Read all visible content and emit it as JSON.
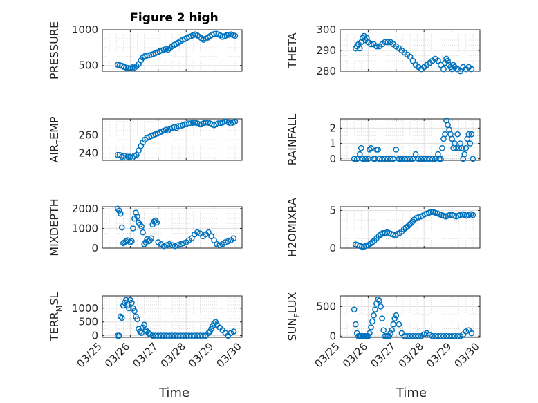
{
  "figure": {
    "title": "Figure 2 high",
    "xlabel": "Time",
    "marker_color": "#0072BD",
    "x_tick_labels": [
      "03/25",
      "03/26",
      "03/27",
      "03/28",
      "03/29",
      "03/30"
    ]
  },
  "chart_data": [
    {
      "type": "scatter",
      "title": "Figure 2 high",
      "ylabel": "PRESSURE",
      "xlabel": "",
      "xlim": [
        0,
        5
      ],
      "ylim": [
        420,
        1000
      ],
      "yticks": [
        500,
        1000
      ],
      "grid": true,
      "x": [
        0.55,
        0.62,
        0.7,
        0.78,
        0.85,
        0.92,
        1.0,
        1.08,
        1.15,
        1.22,
        1.3,
        1.38,
        1.45,
        1.52,
        1.6,
        1.68,
        1.75,
        1.82,
        1.9,
        1.98,
        2.05,
        2.12,
        2.2,
        2.28,
        2.35,
        2.42,
        2.5,
        2.58,
        2.65,
        2.72,
        2.8,
        2.88,
        2.95,
        3.02,
        3.1,
        3.18,
        3.25,
        3.32,
        3.4,
        3.48,
        3.55,
        3.62,
        3.7,
        3.78,
        3.85,
        3.92,
        4.0,
        4.08,
        4.15,
        4.22,
        4.3,
        4.38,
        4.45,
        4.52,
        4.6,
        4.68,
        4.75
      ],
      "y": [
        510,
        505,
        495,
        480,
        470,
        465,
        460,
        475,
        470,
        490,
        520,
        570,
        610,
        630,
        640,
        645,
        650,
        660,
        675,
        685,
        700,
        710,
        720,
        730,
        720,
        740,
        770,
        790,
        800,
        820,
        840,
        860,
        870,
        885,
        900,
        910,
        925,
        935,
        920,
        900,
        880,
        860,
        875,
        890,
        910,
        930,
        940,
        945,
        935,
        920,
        900,
        910,
        925,
        930,
        935,
        925,
        915
      ]
    },
    {
      "type": "scatter",
      "title": "",
      "ylabel": "THETA",
      "xlabel": "",
      "xlim": [
        0,
        5
      ],
      "ylim": [
        280,
        300
      ],
      "yticks": [
        280,
        290,
        300
      ],
      "grid": true,
      "x": [
        0.55,
        0.6,
        0.65,
        0.7,
        0.75,
        0.8,
        0.85,
        0.9,
        0.95,
        1.0,
        1.1,
        1.2,
        1.3,
        1.4,
        1.5,
        1.6,
        1.7,
        1.8,
        1.9,
        2.0,
        2.1,
        2.2,
        2.3,
        2.4,
        2.5,
        2.6,
        2.7,
        2.8,
        2.9,
        3.0,
        3.1,
        3.2,
        3.3,
        3.4,
        3.5,
        3.6,
        3.7,
        3.75,
        3.8,
        3.85,
        3.9,
        3.95,
        4.0,
        4.05,
        4.1,
        4.2,
        4.3,
        4.4,
        4.5,
        4.6,
        4.7
      ],
      "y": [
        291,
        292,
        293,
        291,
        294,
        296,
        297,
        295,
        296,
        294,
        293,
        293,
        292,
        292,
        293,
        294,
        294,
        294,
        293,
        292,
        291,
        290,
        289,
        288,
        287,
        285,
        283,
        282,
        281,
        282,
        283,
        284,
        285,
        286,
        285,
        283,
        281,
        284,
        286,
        285,
        283,
        282,
        281,
        283,
        282,
        281,
        280,
        282,
        281,
        282,
        281
      ]
    },
    {
      "type": "scatter",
      "title": "",
      "ylabel": "AIR_TEMP",
      "xlabel": "",
      "xlim": [
        0,
        5
      ],
      "ylim": [
        232,
        278
      ],
      "yticks": [
        240,
        260
      ],
      "grid": true,
      "x": [
        0.55,
        0.62,
        0.7,
        0.78,
        0.85,
        0.92,
        1.0,
        1.08,
        1.15,
        1.22,
        1.3,
        1.38,
        1.45,
        1.52,
        1.6,
        1.68,
        1.75,
        1.82,
        1.9,
        1.98,
        2.05,
        2.12,
        2.2,
        2.28,
        2.35,
        2.42,
        2.5,
        2.58,
        2.65,
        2.72,
        2.8,
        2.88,
        2.95,
        3.02,
        3.1,
        3.18,
        3.25,
        3.32,
        3.4,
        3.48,
        3.55,
        3.62,
        3.7,
        3.78,
        3.85,
        3.92,
        4.0,
        4.08,
        4.15,
        4.22,
        4.3,
        4.38,
        4.45,
        4.52,
        4.6,
        4.68,
        4.75
      ],
      "y": [
        238,
        238,
        236,
        237,
        235,
        236,
        236,
        235,
        237,
        238,
        243,
        248,
        252,
        255,
        257,
        258,
        259,
        260,
        261,
        262,
        263,
        264,
        265,
        266,
        265,
        267,
        268,
        269,
        268,
        270,
        270,
        271,
        272,
        272,
        273,
        273,
        274,
        274,
        273,
        272,
        272,
        273,
        274,
        274,
        273,
        272,
        271,
        272,
        273,
        273,
        274,
        275,
        275,
        274,
        273,
        274,
        275
      ]
    },
    {
      "type": "scatter",
      "title": "",
      "ylabel": "RAINFALL",
      "xlabel": "",
      "xlim": [
        0,
        5
      ],
      "ylim": [
        -0.1,
        2.6
      ],
      "yticks": [
        0,
        1,
        2
      ],
      "grid": true,
      "x": [
        0.5,
        0.6,
        0.7,
        0.75,
        0.8,
        0.9,
        1.0,
        1.05,
        1.1,
        1.2,
        1.25,
        1.3,
        1.35,
        1.4,
        1.5,
        1.6,
        1.7,
        1.8,
        1.9,
        2.0,
        2.1,
        2.15,
        2.2,
        2.3,
        2.4,
        2.5,
        2.6,
        2.7,
        2.8,
        2.9,
        3.0,
        3.1,
        3.2,
        3.3,
        3.4,
        3.5,
        3.55,
        3.6,
        3.65,
        3.7,
        3.75,
        3.8,
        3.85,
        3.9,
        3.95,
        4.0,
        4.05,
        4.1,
        4.15,
        4.2,
        4.25,
        4.3,
        4.35,
        4.4,
        4.45,
        4.5,
        4.55,
        4.6,
        4.65,
        4.7,
        4.75
      ],
      "y": [
        0,
        0,
        0.3,
        0.7,
        0,
        0,
        0,
        0.6,
        0.7,
        0,
        0,
        0.6,
        0.6,
        0,
        0,
        0,
        0,
        0,
        0,
        0.6,
        0,
        0,
        0,
        0,
        0,
        0,
        0,
        0.3,
        0,
        0,
        0,
        0,
        0,
        0,
        0,
        0.3,
        0,
        0,
        0.7,
        1.3,
        1.6,
        2.5,
        2.2,
        1.9,
        1.6,
        1.3,
        0.7,
        1.0,
        0.7,
        1.6,
        0.7,
        1.0,
        0.7,
        0,
        0.3,
        0.7,
        1.3,
        1.6,
        1.0,
        1.6,
        0
      ]
    },
    {
      "type": "scatter",
      "title": "",
      "ylabel": "MIXDEPTH",
      "xlabel": "",
      "xlim": [
        0,
        5
      ],
      "ylim": [
        0,
        2100
      ],
      "yticks": [
        0,
        1000,
        2000
      ],
      "grid": true,
      "x": [
        0.55,
        0.6,
        0.65,
        0.7,
        0.75,
        0.8,
        0.85,
        0.9,
        1.0,
        1.05,
        1.1,
        1.15,
        1.2,
        1.25,
        1.3,
        1.35,
        1.4,
        1.45,
        1.5,
        1.55,
        1.6,
        1.65,
        1.7,
        1.75,
        1.8,
        1.85,
        1.9,
        1.95,
        2.0,
        2.1,
        2.2,
        2.3,
        2.4,
        2.5,
        2.6,
        2.7,
        2.8,
        2.9,
        3.0,
        3.1,
        3.2,
        3.3,
        3.4,
        3.5,
        3.6,
        3.7,
        3.8,
        3.9,
        4.0,
        4.1,
        4.2,
        4.3,
        4.4,
        4.5,
        4.6,
        4.7
      ],
      "y": [
        2000,
        1900,
        1750,
        1050,
        250,
        300,
        350,
        400,
        300,
        350,
        1000,
        1500,
        1800,
        1600,
        1300,
        1200,
        1100,
        800,
        200,
        300,
        450,
        350,
        400,
        500,
        1200,
        1350,
        1400,
        1300,
        300,
        200,
        100,
        150,
        200,
        150,
        100,
        150,
        200,
        250,
        300,
        400,
        500,
        700,
        800,
        750,
        600,
        700,
        800,
        600,
        400,
        200,
        150,
        200,
        300,
        350,
        400,
        500
      ]
    },
    {
      "type": "scatter",
      "title": "",
      "ylabel": "H2OMIXRA",
      "xlabel": "",
      "xlim": [
        0,
        5
      ],
      "ylim": [
        0,
        5.5
      ],
      "yticks": [
        0,
        5
      ],
      "grid": true,
      "x": [
        0.55,
        0.62,
        0.7,
        0.78,
        0.85,
        0.92,
        1.0,
        1.08,
        1.15,
        1.22,
        1.3,
        1.38,
        1.45,
        1.52,
        1.6,
        1.68,
        1.75,
        1.82,
        1.9,
        1.98,
        2.05,
        2.12,
        2.2,
        2.28,
        2.35,
        2.42,
        2.5,
        2.58,
        2.65,
        2.72,
        2.8,
        2.88,
        2.95,
        3.02,
        3.1,
        3.18,
        3.25,
        3.32,
        3.4,
        3.48,
        3.55,
        3.62,
        3.7,
        3.78,
        3.85,
        3.92,
        4.0,
        4.08,
        4.15,
        4.22,
        4.3,
        4.38,
        4.45,
        4.52,
        4.6,
        4.68,
        4.75
      ],
      "y": [
        0.5,
        0.4,
        0.3,
        0.2,
        0.2,
        0.3,
        0.4,
        0.6,
        0.8,
        1.0,
        1.3,
        1.6,
        1.8,
        2.0,
        2.0,
        2.1,
        2.0,
        1.9,
        1.8,
        1.7,
        1.9,
        2.0,
        2.2,
        2.5,
        2.7,
        2.9,
        3.2,
        3.5,
        3.8,
        4.0,
        4.1,
        4.2,
        4.3,
        4.5,
        4.6,
        4.7,
        4.8,
        4.8,
        4.7,
        4.6,
        4.5,
        4.4,
        4.3,
        4.2,
        4.3,
        4.4,
        4.4,
        4.3,
        4.2,
        4.3,
        4.4,
        4.5,
        4.4,
        4.3,
        4.4,
        4.5,
        4.4
      ]
    },
    {
      "type": "scatter",
      "title": "",
      "ylabel": "TERR_MSL",
      "xlabel": "",
      "xlim": [
        0,
        5
      ],
      "ylim": [
        -60,
        1450
      ],
      "yticks": [
        0,
        500,
        1000
      ],
      "grid": true,
      "x": [
        0.55,
        0.6,
        0.65,
        0.7,
        0.75,
        0.8,
        0.85,
        0.9,
        0.95,
        1.0,
        1.05,
        1.1,
        1.15,
        1.2,
        1.25,
        1.3,
        1.35,
        1.4,
        1.45,
        1.5,
        1.55,
        1.6,
        1.65,
        1.7,
        1.8,
        1.9,
        2.0,
        2.1,
        2.2,
        2.3,
        2.4,
        2.5,
        2.6,
        2.7,
        2.8,
        2.9,
        3.0,
        3.1,
        3.2,
        3.3,
        3.4,
        3.5,
        3.6,
        3.7,
        3.8,
        3.85,
        3.9,
        3.95,
        4.0,
        4.05,
        4.1,
        4.2,
        4.3,
        4.4,
        4.5,
        4.6,
        4.7
      ],
      "y": [
        0,
        0,
        700,
        650,
        1100,
        1200,
        1300,
        1100,
        1000,
        1300,
        1200,
        1000,
        900,
        700,
        600,
        250,
        150,
        100,
        300,
        400,
        200,
        150,
        100,
        50,
        0,
        0,
        0,
        0,
        0,
        0,
        0,
        0,
        0,
        0,
        0,
        0,
        0,
        0,
        0,
        0,
        0,
        0,
        0,
        0,
        100,
        150,
        250,
        350,
        450,
        500,
        400,
        300,
        200,
        100,
        0,
        100,
        150
      ]
    },
    {
      "type": "scatter",
      "title": "",
      "ylabel": "SUN_FLUX",
      "xlabel": "",
      "xlim": [
        0,
        5
      ],
      "ylim": [
        -20,
        680
      ],
      "yticks": [
        0,
        500
      ],
      "grid": true,
      "x": [
        0.5,
        0.55,
        0.6,
        0.65,
        0.7,
        0.75,
        0.8,
        0.85,
        0.9,
        0.95,
        1.0,
        1.05,
        1.1,
        1.15,
        1.2,
        1.25,
        1.3,
        1.35,
        1.4,
        1.45,
        1.5,
        1.55,
        1.6,
        1.65,
        1.7,
        1.75,
        1.8,
        1.85,
        1.9,
        1.95,
        2.0,
        2.1,
        2.2,
        2.3,
        2.4,
        2.5,
        2.6,
        2.7,
        2.8,
        2.9,
        3.0,
        3.1,
        3.2,
        3.3,
        3.4,
        3.5,
        3.6,
        3.7,
        3.8,
        3.9,
        4.0,
        4.1,
        4.2,
        4.3,
        4.4,
        4.5,
        4.6,
        4.7
      ],
      "y": [
        450,
        200,
        50,
        0,
        0,
        0,
        0,
        0,
        0,
        0,
        0,
        50,
        150,
        250,
        350,
        450,
        550,
        620,
        600,
        500,
        300,
        100,
        0,
        0,
        0,
        0,
        50,
        100,
        200,
        300,
        350,
        200,
        50,
        0,
        0,
        0,
        0,
        0,
        0,
        0,
        30,
        50,
        20,
        0,
        0,
        0,
        0,
        0,
        0,
        0,
        0,
        0,
        0,
        0,
        30,
        80,
        100,
        50
      ]
    }
  ]
}
